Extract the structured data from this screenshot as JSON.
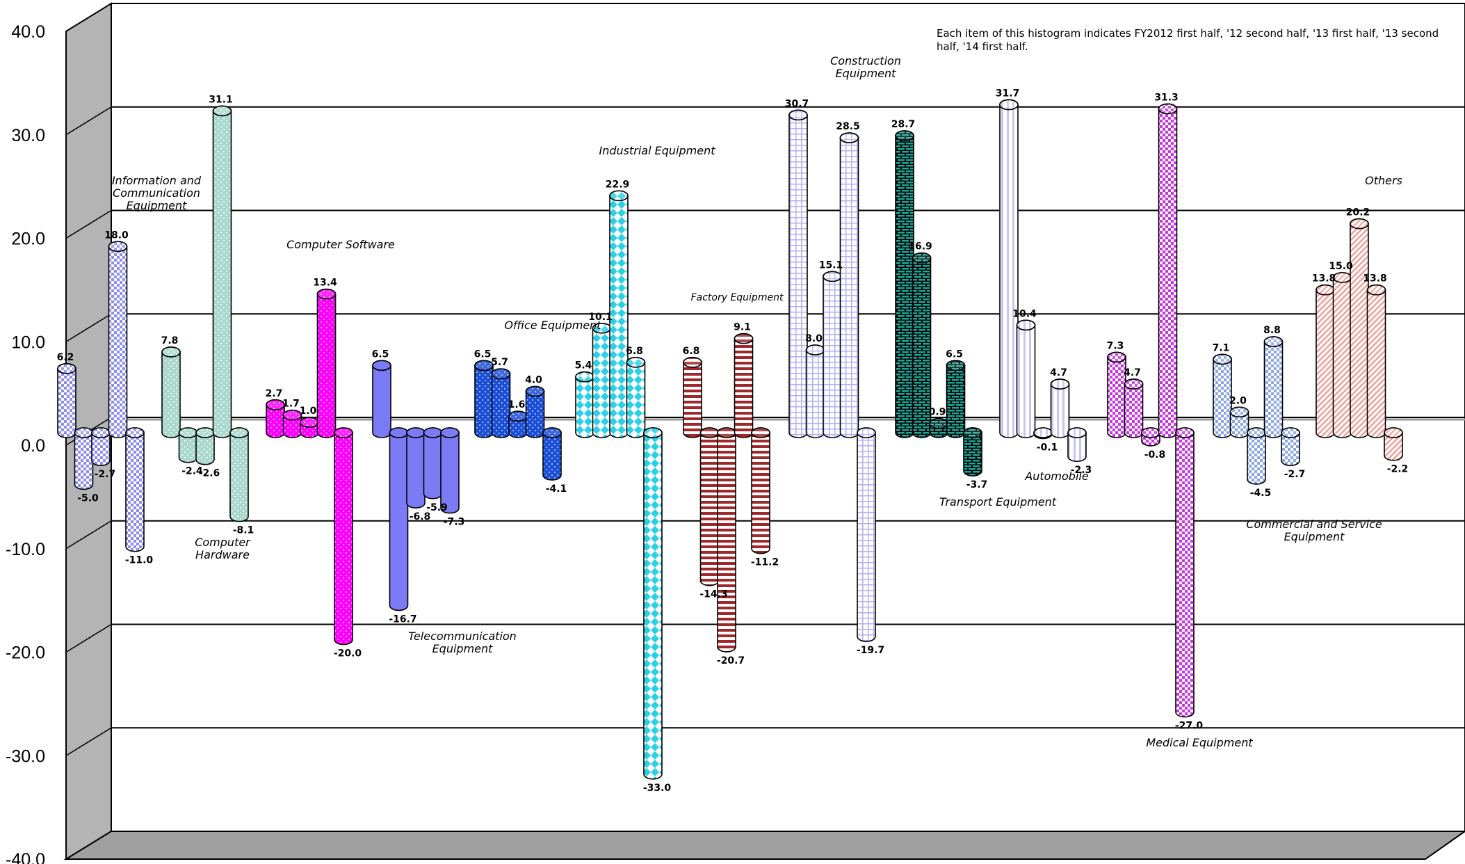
{
  "chart_data": {
    "type": "bar",
    "note": [
      "Each item of this histogram indicates FY2012 first half, '12 second half, '13 first half, '13 second",
      "half, '14 first half."
    ],
    "ylim": [
      -40,
      40
    ],
    "yticks": [
      "40.0",
      "30.0",
      "20.0",
      "10.0",
      "0.0",
      "-10.0",
      "-20.0",
      "-30.0",
      "-40.0"
    ],
    "categories": [
      {
        "name": [
          "Information and",
          "Communication",
          "Equipment"
        ],
        "color": "#8c8cf0",
        "pattern": "checker",
        "values": [
          6.2,
          -5.0,
          -2.7,
          18.0,
          -11.0
        ],
        "labels": [
          "6.2",
          "-5.0",
          "-2.7",
          "18.0",
          "-11.0"
        ]
      },
      {
        "name": [
          "Computer",
          "Hardware"
        ],
        "color": "#aad8cc",
        "pattern": "dots",
        "values": [
          7.8,
          -2.4,
          -2.6,
          31.1,
          -8.1
        ],
        "labels": [
          "7.8",
          "-2.4",
          "-2.6",
          "31.1",
          "-8.1"
        ]
      },
      {
        "name": [
          "Computer Software"
        ],
        "color": "#ff00ff",
        "pattern": "sparkle",
        "values": [
          2.7,
          1.7,
          1.0,
          13.4,
          -20.0
        ],
        "labels": [
          "2.7",
          "1.7",
          "1.0",
          "13.4",
          "-20.0"
        ]
      },
      {
        "name": [
          "Telecommunication",
          "Equipment"
        ],
        "color": "#7b7bf5",
        "pattern": "solid",
        "values": [
          6.5,
          -16.7,
          -6.8,
          -5.9,
          -7.3
        ],
        "labels": [
          "6.5",
          "-16.7",
          "-6.8",
          "-5.9",
          "-7.3"
        ]
      },
      {
        "name": [
          "Office Equipment"
        ],
        "color": "#1c4fd8",
        "pattern": "sparkle",
        "values": [
          6.5,
          5.7,
          1.6,
          4.0,
          -4.1
        ],
        "labels": [
          "6.5",
          "5.7",
          "1.6",
          "4.0",
          "-4.1"
        ]
      },
      {
        "name": [
          "Industrial Equipment"
        ],
        "color": "#2ad0e6",
        "pattern": "diamond",
        "values": [
          5.4,
          10.1,
          22.9,
          6.8,
          -33.0
        ],
        "labels": [
          "5.4",
          "10.1",
          "22.9",
          "6.8",
          "-33.0"
        ]
      },
      {
        "name": [
          "Factory Equipment"
        ],
        "color": "#a0282a",
        "pattern": "hstripe",
        "values": [
          6.8,
          -14.3,
          -20.7,
          9.1,
          -11.2
        ],
        "labels": [
          "6.8",
          "-14.3",
          "-20.7",
          "9.1",
          "-11.2"
        ]
      },
      {
        "name": [
          "Construction",
          "Equipment"
        ],
        "color": "#b0b0f4",
        "pattern": "grid",
        "values": [
          30.7,
          8.0,
          15.1,
          28.5,
          -19.7
        ],
        "labels": [
          "30.7",
          "8.0",
          "15.1",
          "28.5",
          "-19.7"
        ]
      },
      {
        "name": [
          "Transport Equipment"
        ],
        "color": "#18a89a",
        "pattern": "brick",
        "values": [
          28.7,
          16.9,
          0.9,
          6.5,
          -3.7
        ],
        "labels": [
          "28.7",
          "16.9",
          "0.9",
          "6.5",
          "-3.7"
        ]
      },
      {
        "name": [
          "Automobile"
        ],
        "color": "#c6c6f0",
        "pattern": "vstripe",
        "values": [
          31.7,
          10.4,
          -0.1,
          4.7,
          -2.3
        ],
        "labels": [
          "31.7",
          "10.4",
          "-0.1",
          "4.7",
          "-2.3"
        ]
      },
      {
        "name": [
          "Medical Equipment"
        ],
        "color": "#cc33e6",
        "pattern": "checker",
        "values": [
          7.3,
          4.7,
          -0.8,
          31.3,
          -27.0
        ],
        "labels": [
          "7.3",
          "4.7",
          "-0.8",
          "31.3",
          "-27.0"
        ]
      },
      {
        "name": [
          "Commercial and Service",
          "Equipment"
        ],
        "color": "#8aa6e6",
        "pattern": "checker",
        "values": [
          7.1,
          2.0,
          -4.5,
          8.8,
          -2.7
        ],
        "labels": [
          "7.1",
          "2.0",
          "-4.5",
          "8.8",
          "-2.7"
        ]
      },
      {
        "name": [
          "Others"
        ],
        "color": "#f0a098",
        "pattern": "dstripe",
        "values": [
          13.8,
          15.0,
          20.2,
          13.8,
          -2.2
        ],
        "labels": [
          "13.8",
          "15.0",
          "20.2",
          "13.8",
          "-2.2"
        ]
      }
    ]
  }
}
